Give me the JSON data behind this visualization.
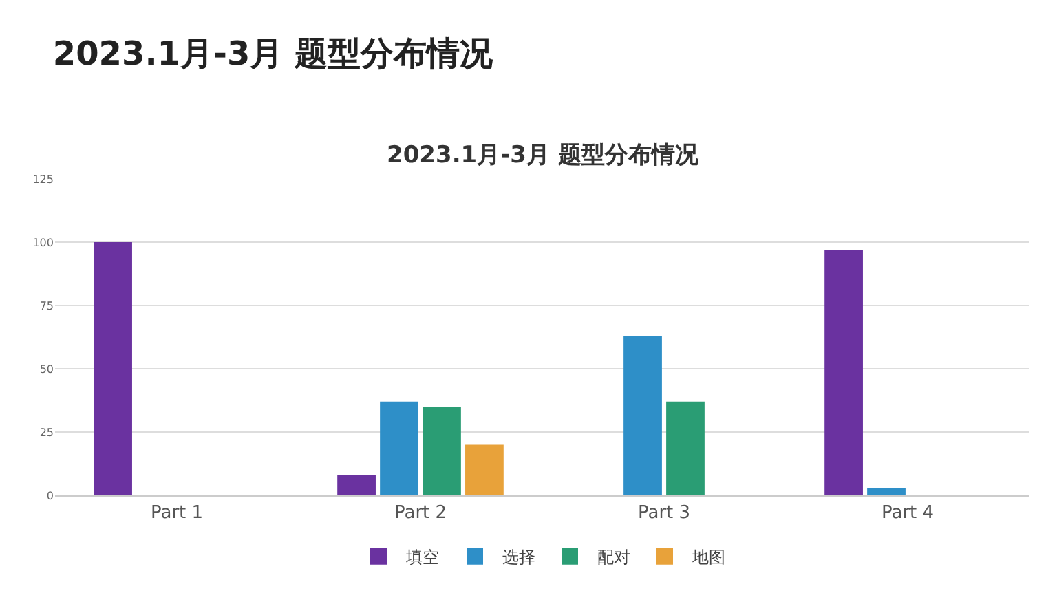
{
  "chart_data": {
    "type": "bar",
    "title": "2023.1月-3月 题型分布情况",
    "subtitle": "2023.1月-3月 题型分布情况",
    "categories": [
      "Part 1",
      "Part 2",
      "Part 3",
      "Part 4"
    ],
    "series": [
      {
        "name": "填空",
        "color": "#6a32a0",
        "values": [
          100,
          8,
          null,
          97
        ]
      },
      {
        "name": "选择",
        "color": "#2e8fc8",
        "values": [
          null,
          37,
          63,
          3
        ]
      },
      {
        "name": "配对",
        "color": "#2a9d74",
        "values": [
          null,
          35,
          37,
          null
        ]
      },
      {
        "name": "地图",
        "color": "#e8a23a",
        "values": [
          null,
          20,
          null,
          null
        ]
      }
    ],
    "ylim": [
      0,
      125
    ],
    "yticks": [
      0,
      25,
      50,
      75,
      100,
      125
    ],
    "grid": "y",
    "legend": "bottom"
  }
}
